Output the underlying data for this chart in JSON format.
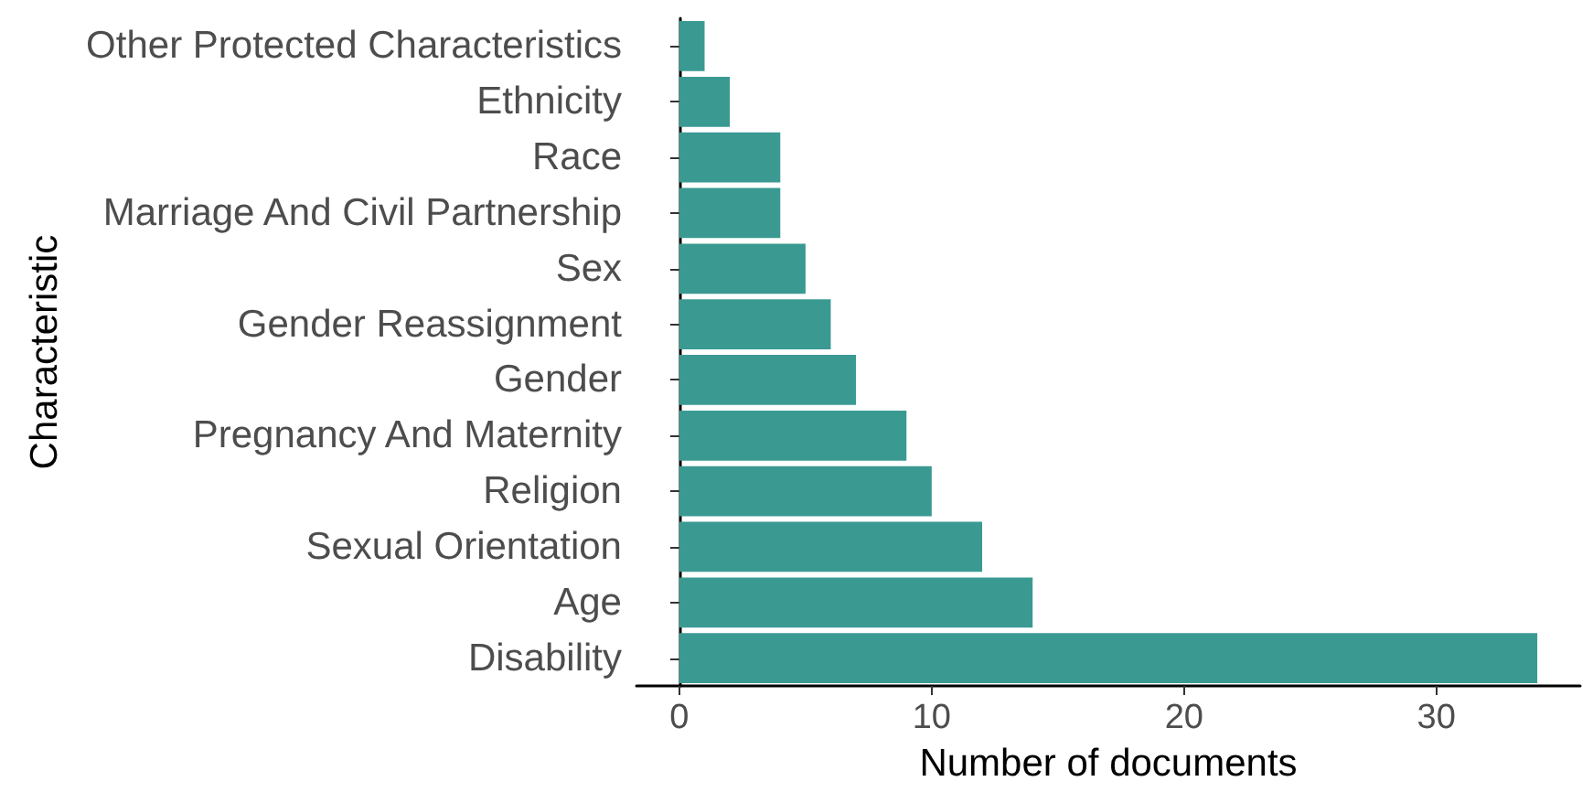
{
  "chart_data": {
    "type": "bar",
    "orientation": "horizontal",
    "xlabel": "Number of documents",
    "ylabel": "Characteristic",
    "categories": [
      "Other Protected Characteristics",
      "Ethnicity",
      "Race",
      "Marriage And Civil Partnership",
      "Sex",
      "Gender Reassignment",
      "Gender",
      "Pregnancy And Maternity",
      "Religion",
      "Sexual Orientation",
      "Age",
      "Disability"
    ],
    "values": [
      1,
      2,
      4,
      4,
      5,
      6,
      7,
      9,
      10,
      12,
      14,
      34
    ],
    "color": "#3a9a92",
    "xlim": [
      -1.7,
      35.7
    ],
    "xticks": [
      0,
      10,
      20,
      30
    ],
    "grid": false
  }
}
